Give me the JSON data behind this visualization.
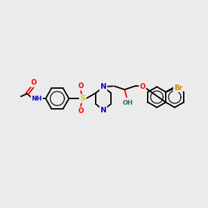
{
  "bg_color": "#ebebeb",
  "bond_color": "#000000",
  "atom_colors": {
    "N": "#0000cc",
    "O": "#ff0000",
    "S": "#cccc00",
    "Br": "#cc8800",
    "C": "#000000",
    "H": "#336666"
  },
  "figsize": [
    3.0,
    3.0
  ],
  "dpi": 100
}
